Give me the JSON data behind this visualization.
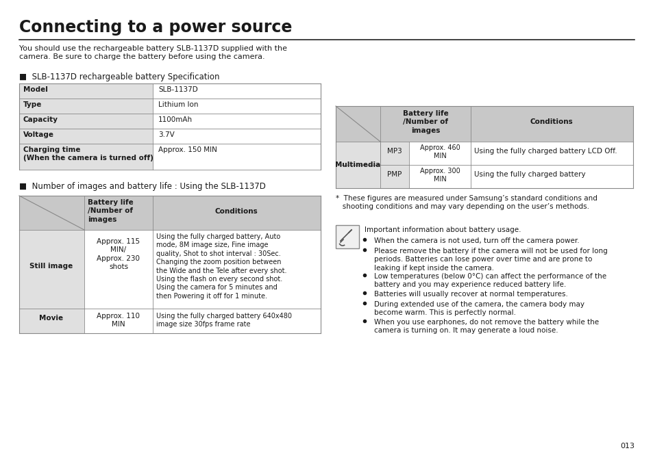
{
  "title": "Connecting to a power source",
  "intro_text": "You should use the rechargeable battery SLB-1137D supplied with the\ncamera. Be sure to charge the battery before using the camera.",
  "section1_header": "■  SLB-1137D rechargeable battery Specification",
  "spec_table_rows": [
    [
      "Model",
      "SLB-1137D"
    ],
    [
      "Type",
      "Lithium Ion"
    ],
    [
      "Capacity",
      "1100mAh"
    ],
    [
      "Voltage",
      "3.7V"
    ],
    [
      "Charging time\n(When the camera is turned off)",
      "Approx. 150 MIN"
    ]
  ],
  "section2_header": "■  Number of images and battery life : Using the SLB-1137D",
  "bt_rows": [
    [
      "Still image",
      "Approx. 115\nMIN/\nApprox. 230\nshots",
      "Using the fully charged battery, Auto\nmode, 8M image size, Fine image\nquality, Shot to shot interval : 30Sec.\nChanging the zoom position between\nthe Wide and the Tele after every shot.\nUsing the flash on every second shot.\nUsing the camera for 5 minutes and\nthen Powering it off for 1 minute."
    ],
    [
      "Movie",
      "Approx. 110\nMIN",
      "Using the fully charged battery 640x480\nimage size 30fps frame rate"
    ]
  ],
  "rt_mp3_battery": "Approx. 460\nMIN",
  "rt_mp3_cond": "Using the fully charged battery LCD Off.",
  "rt_pmp_battery": "Approx. 300\nMIN",
  "rt_pmp_cond": "Using the fully charged battery",
  "footnote": "*  These figures are measured under Samsung’s standard conditions and\n   shooting conditions and may vary depending on the user’s methods.",
  "note_header": "Important information about battery usage.",
  "bullets": [
    "When the camera is not used, turn off the camera power.",
    "Please remove the battery if the camera will not be used for long\nperiods. Batteries can lose power over time and are prone to\nleaking if kept inside the camera.",
    "Low temperatures (below 0°C) can affect the performance of the\nbattery and you may experience reduced battery life.",
    "Batteries will usually recover at normal temperatures.",
    "During extended use of the camera, the camera body may\nbecome warm. This is perfectly normal.",
    "When you use earphones, do not remove the battery while the\ncamera is turning on. It may generate a loud noise."
  ],
  "page_number": "013",
  "bg_color": "#ffffff",
  "hdr_bg": "#c8c8c8",
  "gray_bg": "#e0e0e0",
  "white_bg": "#ffffff",
  "border_color": "#888888"
}
